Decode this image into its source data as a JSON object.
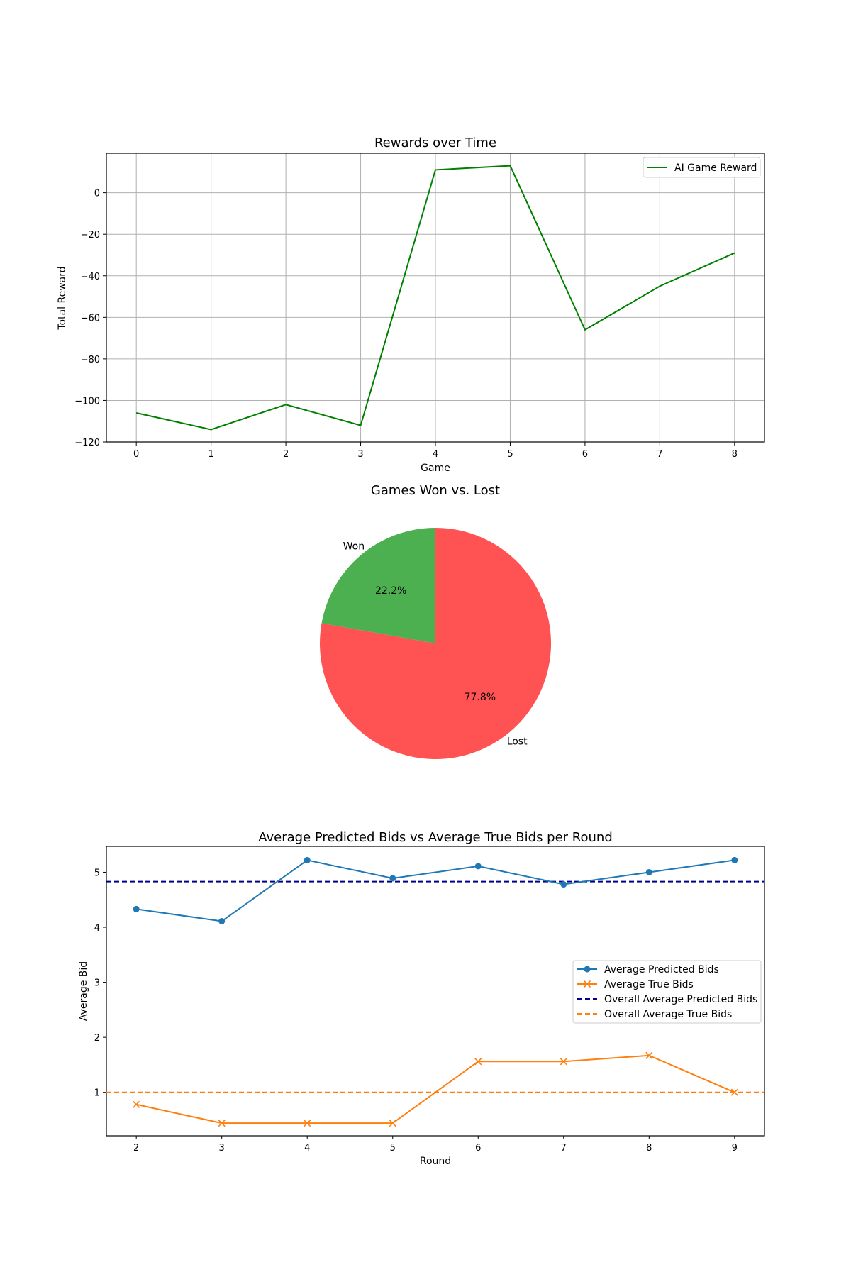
{
  "chart_data": [
    {
      "type": "line",
      "title": "Rewards over Time",
      "xlabel": "Game",
      "ylabel": "Total Reward",
      "x": [
        0,
        1,
        2,
        3,
        4,
        5,
        6,
        7,
        8
      ],
      "xticks": [
        "0",
        "1",
        "2",
        "3",
        "4",
        "5",
        "6",
        "7",
        "8"
      ],
      "yticks": [
        "0",
        "−20",
        "−40",
        "−60",
        "−80",
        "−100",
        "−120"
      ],
      "ytick_values": [
        0,
        -20,
        -40,
        -60,
        -80,
        -100,
        -120
      ],
      "xlim": [
        -0.4,
        8.4
      ],
      "ylim": [
        -120,
        19
      ],
      "grid": true,
      "legend_position": "top-right",
      "series": [
        {
          "name": "AI Game Reward",
          "color": "#008000",
          "values": [
            -106,
            -114,
            -102,
            -112,
            11,
            13,
            -66,
            -45,
            -29
          ]
        }
      ]
    },
    {
      "type": "pie",
      "title": "Games Won vs. Lost",
      "slices": [
        {
          "label": "Won",
          "value": 22.2,
          "pct_label": "22.2%",
          "color": "#4caf50"
        },
        {
          "label": "Lost",
          "value": 77.8,
          "pct_label": "77.8%",
          "color": "#ff5252"
        }
      ]
    },
    {
      "type": "line",
      "title": "Average Predicted Bids vs Average True Bids per Round",
      "xlabel": "Round",
      "ylabel": "Average Bid",
      "x": [
        2,
        3,
        4,
        5,
        6,
        7,
        8,
        9
      ],
      "xticks": [
        "2",
        "3",
        "4",
        "5",
        "6",
        "7",
        "8",
        "9"
      ],
      "yticks": [
        "1",
        "2",
        "3",
        "4",
        "5"
      ],
      "ytick_values": [
        1,
        2,
        3,
        4,
        5
      ],
      "xlim": [
        1.65,
        9.35
      ],
      "ylim": [
        0.21,
        5.47
      ],
      "grid": false,
      "legend_position": "center-right",
      "series": [
        {
          "name": "Average Predicted Bids",
          "color": "#1f77b4",
          "marker": "circle",
          "values": [
            4.33,
            4.11,
            5.22,
            4.89,
            5.11,
            4.78,
            5.0,
            5.22
          ]
        },
        {
          "name": "Average True Bids",
          "color": "#ff7f0e",
          "marker": "x",
          "values": [
            0.78,
            0.44,
            0.44,
            0.44,
            1.56,
            1.56,
            1.67,
            1.0
          ]
        }
      ],
      "hlines": [
        {
          "name": "Overall Average Predicted Bids",
          "color": "#00008b",
          "value": 4.83
        },
        {
          "name": "Overall Average True Bids",
          "color": "#ff7f0e",
          "value": 1.0
        }
      ]
    }
  ]
}
